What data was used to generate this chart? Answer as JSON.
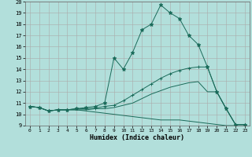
{
  "xlabel": "Humidex (Indice chaleur)",
  "ylabel": "",
  "xlim": [
    -0.5,
    23.5
  ],
  "ylim": [
    9,
    20
  ],
  "xticks": [
    0,
    1,
    2,
    3,
    4,
    5,
    6,
    7,
    8,
    9,
    10,
    11,
    12,
    13,
    14,
    15,
    16,
    17,
    18,
    19,
    20,
    21,
    22,
    23
  ],
  "yticks": [
    9,
    10,
    11,
    12,
    13,
    14,
    15,
    16,
    17,
    18,
    19,
    20
  ],
  "bg_color": "#b2dfdb",
  "line_color": "#1a6b5a",
  "grid_color": "#aaaaaa",
  "lines": [
    {
      "x": [
        0,
        1,
        2,
        3,
        4,
        5,
        6,
        7,
        8,
        9,
        10,
        11,
        12,
        13,
        14,
        15,
        16,
        17,
        18,
        19,
        20,
        21,
        22,
        23
      ],
      "y": [
        10.7,
        10.6,
        10.3,
        10.4,
        10.4,
        10.5,
        10.6,
        10.7,
        11.0,
        15.0,
        14.0,
        15.5,
        17.5,
        18.0,
        19.7,
        19.0,
        18.5,
        17.0,
        16.2,
        14.2,
        12.0,
        10.5,
        9.1,
        9.1
      ],
      "marker": "*",
      "markersize": 3.5
    },
    {
      "x": [
        0,
        1,
        2,
        3,
        4,
        5,
        6,
        7,
        8,
        9,
        10,
        11,
        12,
        13,
        14,
        15,
        16,
        17,
        18,
        19,
        20,
        21,
        22,
        23
      ],
      "y": [
        10.7,
        10.6,
        10.3,
        10.4,
        10.4,
        10.5,
        10.5,
        10.55,
        10.7,
        10.8,
        11.2,
        11.7,
        12.2,
        12.7,
        13.2,
        13.6,
        13.9,
        14.1,
        14.2,
        14.2,
        12.0,
        10.5,
        9.1,
        9.1
      ],
      "marker": "+",
      "markersize": 3.5
    },
    {
      "x": [
        0,
        1,
        2,
        3,
        4,
        5,
        6,
        7,
        8,
        9,
        10,
        11,
        12,
        13,
        14,
        15,
        16,
        17,
        18,
        19,
        20,
        21,
        22,
        23
      ],
      "y": [
        10.7,
        10.6,
        10.3,
        10.4,
        10.4,
        10.4,
        10.4,
        10.5,
        10.5,
        10.6,
        10.8,
        11.0,
        11.4,
        11.8,
        12.1,
        12.4,
        12.6,
        12.8,
        12.9,
        12.0,
        12.0,
        10.5,
        9.1,
        9.1
      ],
      "marker": null,
      "markersize": 0
    },
    {
      "x": [
        0,
        1,
        2,
        3,
        4,
        5,
        6,
        7,
        8,
        9,
        10,
        11,
        12,
        13,
        14,
        15,
        16,
        17,
        18,
        19,
        20,
        21,
        22,
        23
      ],
      "y": [
        10.7,
        10.6,
        10.3,
        10.4,
        10.4,
        10.4,
        10.3,
        10.2,
        10.1,
        10.0,
        9.9,
        9.8,
        9.7,
        9.6,
        9.5,
        9.5,
        9.5,
        9.4,
        9.3,
        9.2,
        9.1,
        9.0,
        9.0,
        9.0
      ],
      "marker": null,
      "markersize": 0
    }
  ]
}
